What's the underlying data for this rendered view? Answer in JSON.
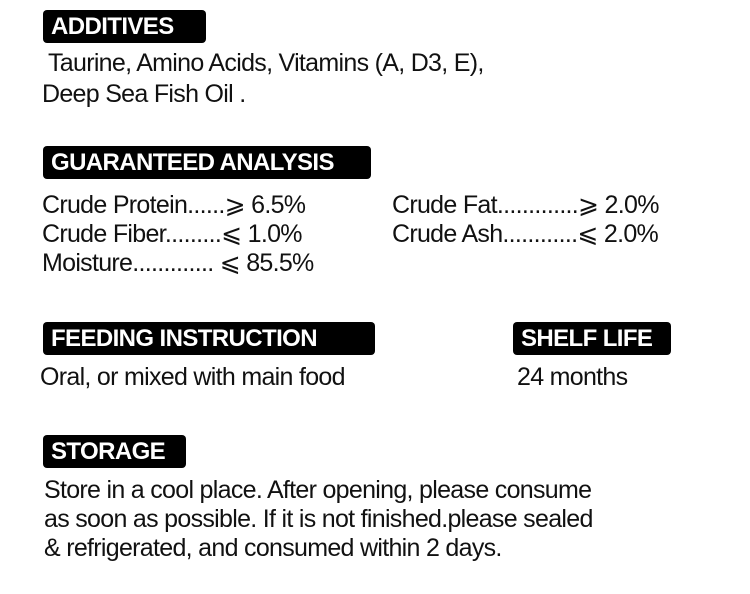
{
  "additives": {
    "heading": "ADDITIVES",
    "lines": [
      "Taurine, Amino Acids, Vitamins (A, D3, E),",
      "Deep Sea Fish Oil ."
    ]
  },
  "analysis": {
    "heading": "GUARANTEED ANALYSIS",
    "items": [
      "Crude Protein......⩾ 6.5%",
      "Crude Fat.............⩾ 2.0%",
      "Crude Fiber.........⩽ 1.0%",
      "Crude Ash............⩽ 2.0%",
      "Moisture............. ⩽ 85.5%"
    ]
  },
  "feeding": {
    "heading": "FEEDING INSTRUCTION",
    "text": "Oral, or mixed with main food"
  },
  "shelf_life": {
    "heading": "SHELF LIFE",
    "text": "24 months"
  },
  "storage": {
    "heading": "STORAGE",
    "lines": [
      "Store in a cool place. After opening, please consume",
      "as soon as possible. If it is not finished.please sealed",
      "& refrigerated, and consumed within 2 days."
    ]
  }
}
